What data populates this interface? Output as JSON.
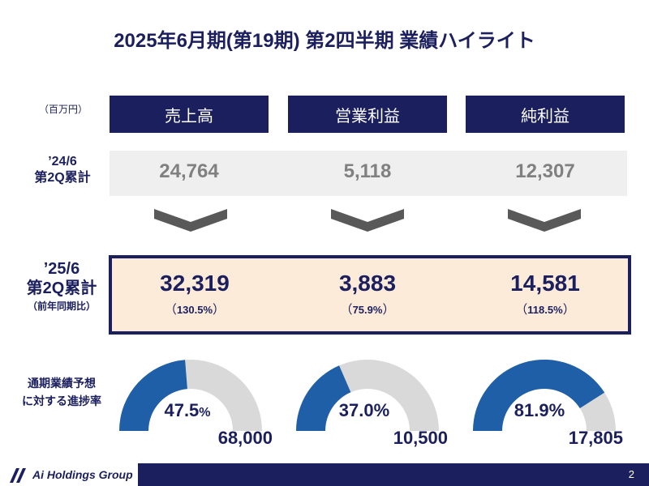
{
  "title": "2025年6月期(第19期) 第2四半期 業績ハイライト",
  "unit_label": "（百万円）",
  "columns": [
    {
      "header": "売上高",
      "prev_value": "24,764",
      "curr_value": "32,319",
      "yoy_open": "（",
      "yoy_value": "130.5",
      "yoy_unit": "%",
      "yoy_close": "）",
      "progress_value": "47.5",
      "progress_unit": "%",
      "progress_fraction": 0.475,
      "target": "68,000"
    },
    {
      "header": "営業利益",
      "prev_value": "5,118",
      "curr_value": "3,883",
      "yoy_open": "（",
      "yoy_value": "75.9",
      "yoy_unit": "%",
      "yoy_close": "）",
      "progress_value": "37.0",
      "progress_unit": "%",
      "progress_fraction": 0.37,
      "target": "10,500"
    },
    {
      "header": "純利益",
      "prev_value": "12,307",
      "curr_value": "14,581",
      "yoy_open": "（",
      "yoy_value": "118.5",
      "yoy_unit": "%",
      "yoy_close": "）",
      "progress_value": "81.9",
      "progress_unit": "%",
      "progress_fraction": 0.819,
      "target": "17,805"
    }
  ],
  "row_prev": {
    "line1": "’24/6",
    "line2": "第2Q累計"
  },
  "row_curr": {
    "line1": "’25/6",
    "line2": "第2Q累計",
    "line3": "（前年同期比）"
  },
  "forecast": {
    "line1": "通期業績予想",
    "line2": "に対する進捗率"
  },
  "footer": {
    "logo_text": "Ai Holdings Group",
    "page_number": "2"
  },
  "colors": {
    "navy": "#1b1f5e",
    "gauge_fill": "#1f5fa8",
    "gauge_track": "#d9d9d9",
    "highlight_bg": "#fcebd9",
    "prev_bg": "#efefef",
    "prev_text": "#808080"
  },
  "icons": [
    "chevron-down-icon",
    "logo-icon"
  ]
}
